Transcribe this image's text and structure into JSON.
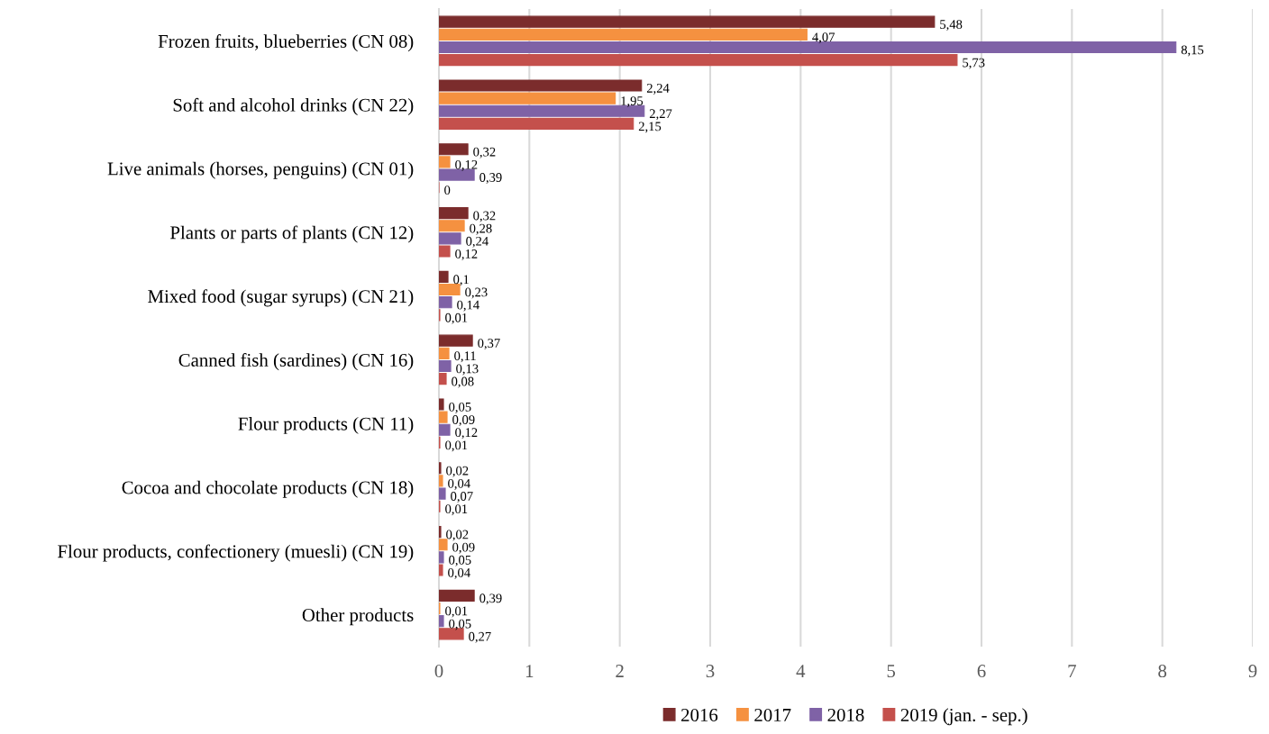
{
  "chart_data": {
    "type": "bar",
    "orientation": "horizontal",
    "categories": [
      "Frozen fruits, blueberries (CN 08)",
      "Soft and alcohol drinks (CN 22)",
      "Live animals (horses, penguins) (CN 01)",
      "Plants or parts of plants (CN 12)",
      "Mixed food (sugar syrups) (CN 21)",
      "Canned fish (sardines) (CN 16)",
      "Flour products (CN 11)",
      "Cocoa and chocolate products (CN 18)",
      "Flour products, confectionery (muesli) (CN 19)",
      "Other products"
    ],
    "series": [
      {
        "name": "2016",
        "color": "#7b2c2c",
        "values": [
          5.48,
          2.24,
          0.32,
          0.32,
          0.1,
          0.37,
          0.05,
          0.02,
          0.02,
          0.39
        ],
        "value_labels": [
          "5,48",
          "2,24",
          "0,32",
          "0,32",
          "0,1",
          "0,37",
          "0,05",
          "0,02",
          "0,02",
          "0,39"
        ]
      },
      {
        "name": "2017",
        "color": "#f59140",
        "values": [
          4.07,
          1.95,
          0.12,
          0.28,
          0.23,
          0.11,
          0.09,
          0.04,
          0.09,
          0.01
        ],
        "value_labels": [
          "4,07",
          "1,95",
          "0,12",
          "0,28",
          "0,23",
          "0,11",
          "0,09",
          "0,04",
          "0,09",
          "0,01"
        ]
      },
      {
        "name": "2018",
        "color": "#7f62a6",
        "values": [
          8.15,
          2.27,
          0.39,
          0.24,
          0.14,
          0.13,
          0.12,
          0.07,
          0.05,
          0.05
        ],
        "value_labels": [
          "8,15",
          "2,27",
          "0,39",
          "0,24",
          "0,14",
          "0,13",
          "0,12",
          "0,07",
          "0,05",
          "0,05"
        ]
      },
      {
        "name": "2019 (jan. - sep.)",
        "color": "#c4504c",
        "values": [
          5.73,
          2.15,
          0,
          0.12,
          0.01,
          0.08,
          0.01,
          0.01,
          0.04,
          0.27
        ],
        "value_labels": [
          "5,73",
          "2,15",
          "0",
          "0,12",
          "0,01",
          "0,08",
          "0,01",
          "0,01",
          "0,04",
          "0,27"
        ]
      }
    ],
    "xlim": [
      0,
      9
    ],
    "xticks": [
      0,
      1,
      2,
      3,
      4,
      5,
      6,
      7,
      8,
      9
    ],
    "grid": "x",
    "legend": "bottom"
  }
}
